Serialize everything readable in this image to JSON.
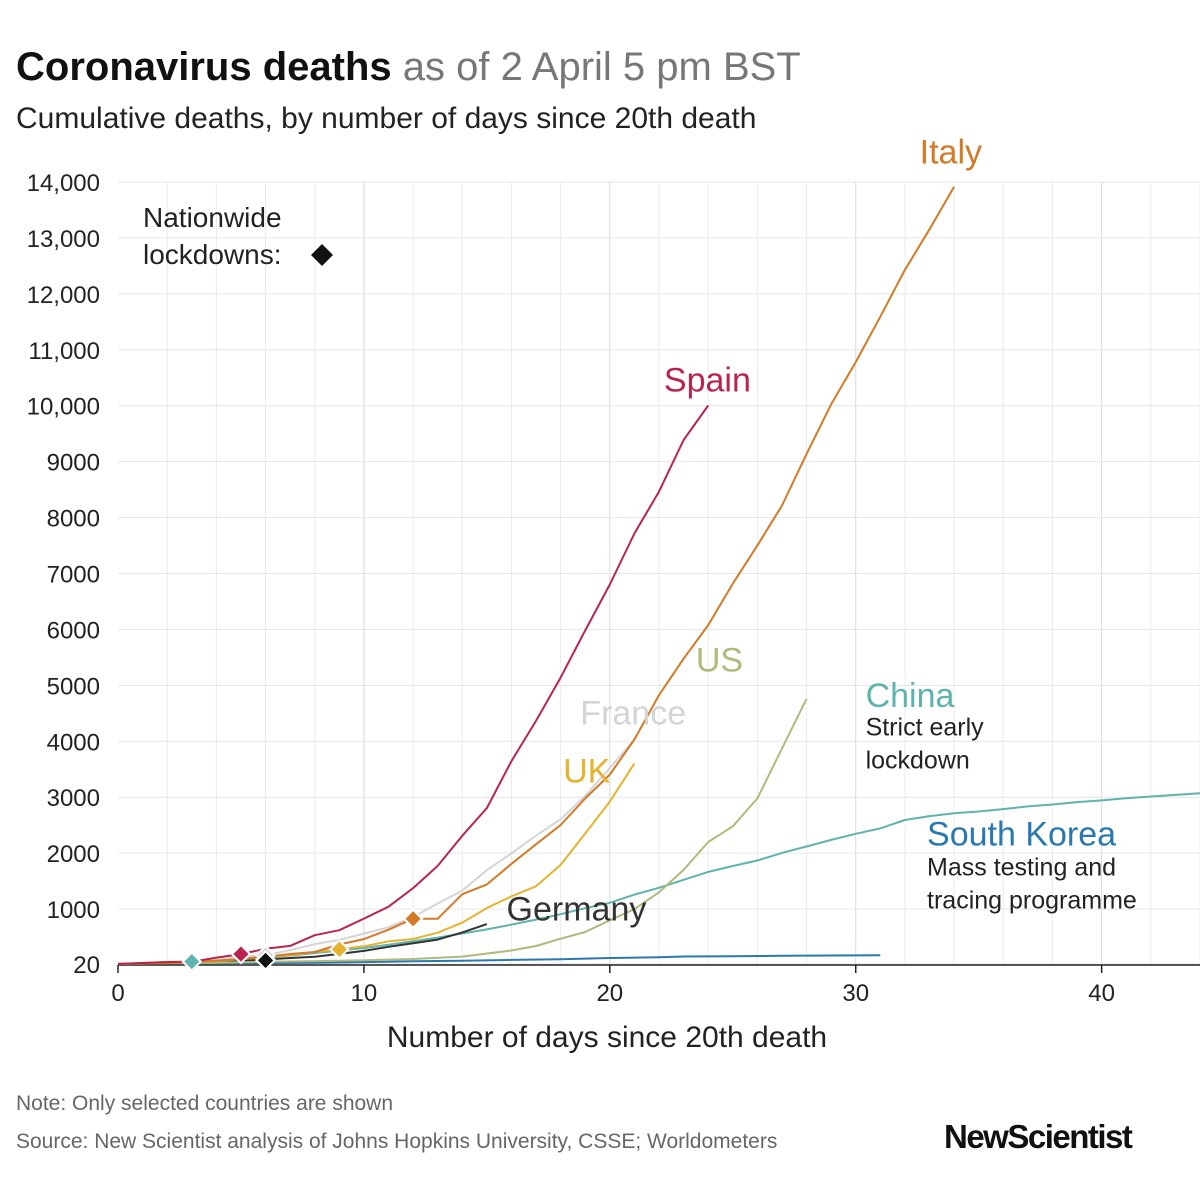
{
  "header": {
    "title_bold": "Coronavirus deaths",
    "title_light": "as of 2 April 5 pm BST",
    "subtitle": "Cumulative deaths, by number of days since 20th death"
  },
  "footer": {
    "note": "Note: Only selected countries are shown",
    "source": "Source: New Scientist analysis of Johns Hopkins University, CSSE; Worldometers",
    "brand": "NewScientist"
  },
  "chart_data": {
    "type": "line",
    "xlabel": "Number of days since 20th death",
    "ylabel": "",
    "xlim": [
      0,
      44
    ],
    "ylim": [
      0,
      14000
    ],
    "grid": true,
    "x_ticks": [
      0,
      10,
      20,
      30,
      40
    ],
    "y_ticks": [
      {
        "value": 20,
        "label": "20"
      },
      {
        "value": 1000,
        "label": "1000"
      },
      {
        "value": 2000,
        "label": "2000"
      },
      {
        "value": 3000,
        "label": "3000"
      },
      {
        "value": 4000,
        "label": "4000"
      },
      {
        "value": 5000,
        "label": "5000"
      },
      {
        "value": 6000,
        "label": "6000"
      },
      {
        "value": 7000,
        "label": "7000"
      },
      {
        "value": 8000,
        "label": "8000"
      },
      {
        "value": 9000,
        "label": "9000"
      },
      {
        "value": 10000,
        "label": "10,000"
      },
      {
        "value": 11000,
        "label": "11,000"
      },
      {
        "value": 12000,
        "label": "12,000"
      },
      {
        "value": 13000,
        "label": "13,000"
      },
      {
        "value": 14000,
        "label": "14,000"
      }
    ],
    "lockdown_legend": {
      "line1": "Nationwide",
      "line2": "lockdowns:",
      "color": "#111111"
    },
    "series": [
      {
        "name": "South Korea",
        "color": "#2a78b0",
        "values": [
          [
            0,
            21
          ],
          [
            2,
            28
          ],
          [
            4,
            32
          ],
          [
            6,
            35
          ],
          [
            8,
            42
          ],
          [
            10,
            52
          ],
          [
            12,
            66
          ],
          [
            14,
            75
          ],
          [
            16,
            91
          ],
          [
            18,
            104
          ],
          [
            20,
            126
          ],
          [
            22,
            139
          ],
          [
            23,
            152
          ],
          [
            25,
            158
          ],
          [
            27,
            165
          ],
          [
            29,
            169
          ],
          [
            31,
            174
          ]
        ],
        "lockdown": null,
        "label": {
          "text": "South Korea",
          "x": 32.9,
          "y": 2140
        },
        "note": [
          "Mass testing and",
          "tracing programme"
        ],
        "note_pos": {
          "x": 32.9,
          "y": 1600
        }
      },
      {
        "name": "China",
        "color": "#5fb3ae",
        "values": [
          [
            0,
            21
          ],
          [
            1,
            25
          ],
          [
            2,
            41
          ],
          [
            3,
            56
          ],
          [
            4,
            80
          ],
          [
            5,
            106
          ],
          [
            6,
            132
          ],
          [
            7,
            170
          ],
          [
            8,
            213
          ],
          [
            9,
            259
          ],
          [
            10,
            304
          ],
          [
            11,
            361
          ],
          [
            12,
            425
          ],
          [
            13,
            490
          ],
          [
            14,
            563
          ],
          [
            15,
            637
          ],
          [
            16,
            722
          ],
          [
            17,
            811
          ],
          [
            18,
            908
          ],
          [
            19,
            1016
          ],
          [
            20,
            1113
          ],
          [
            21,
            1259
          ],
          [
            22,
            1380
          ],
          [
            23,
            1523
          ],
          [
            24,
            1665
          ],
          [
            25,
            1770
          ],
          [
            26,
            1868
          ],
          [
            27,
            2004
          ],
          [
            28,
            2118
          ],
          [
            29,
            2236
          ],
          [
            30,
            2345
          ],
          [
            31,
            2442
          ],
          [
            32,
            2592
          ],
          [
            33,
            2663
          ],
          [
            34,
            2715
          ],
          [
            35,
            2744
          ],
          [
            36,
            2788
          ],
          [
            37,
            2835
          ],
          [
            38,
            2870
          ],
          [
            39,
            2912
          ],
          [
            40,
            2943
          ],
          [
            41,
            2981
          ],
          [
            42,
            3012
          ],
          [
            43,
            3042
          ],
          [
            44,
            3070
          ]
        ],
        "lockdown": null,
        "label": {
          "text": "China",
          "x": 30.4,
          "y": 4610
        },
        "note": [
          "Strict early",
          "lockdown"
        ],
        "note_pos": {
          "x": 30.4,
          "y": 4100
        }
      },
      {
        "name": "Germany",
        "color": "#333333",
        "values": [
          [
            0,
            20
          ],
          [
            1,
            25
          ],
          [
            2,
            31
          ],
          [
            3,
            47
          ],
          [
            4,
            55
          ],
          [
            5,
            72
          ],
          [
            6,
            99
          ],
          [
            7,
            126
          ],
          [
            8,
            149
          ],
          [
            9,
            198
          ],
          [
            10,
            253
          ],
          [
            11,
            325
          ],
          [
            12,
            389
          ],
          [
            13,
            455
          ],
          [
            14,
            583
          ],
          [
            15,
            732
          ]
        ],
        "lockdown": 6,
        "label": {
          "text": "Germany",
          "x": 15.8,
          "y": 800
        }
      },
      {
        "name": "US",
        "color": "#b1b97b",
        "values": [
          [
            0,
            22
          ],
          [
            2,
            31
          ],
          [
            4,
            40
          ],
          [
            6,
            57
          ],
          [
            8,
            69
          ],
          [
            10,
            85
          ],
          [
            12,
            108
          ],
          [
            14,
            150
          ],
          [
            16,
            260
          ],
          [
            17,
            340
          ],
          [
            18,
            471
          ],
          [
            19,
            590
          ],
          [
            20,
            800
          ],
          [
            21,
            1000
          ],
          [
            22,
            1300
          ],
          [
            23,
            1700
          ],
          [
            24,
            2200
          ],
          [
            25,
            2480
          ],
          [
            26,
            2978
          ],
          [
            27,
            3873
          ],
          [
            28,
            4757
          ]
        ],
        "lockdown": null,
        "label": {
          "text": "US",
          "x": 23.5,
          "y": 5250
        }
      },
      {
        "name": "France",
        "color": "#d4d4d4",
        "values": [
          [
            0,
            19
          ],
          [
            1,
            33
          ],
          [
            2,
            48
          ],
          [
            3,
            79
          ],
          [
            4,
            91
          ],
          [
            5,
            148
          ],
          [
            6,
            175
          ],
          [
            7,
            264
          ],
          [
            8,
            372
          ],
          [
            9,
            450
          ],
          [
            10,
            562
          ],
          [
            11,
            674
          ],
          [
            12,
            860
          ],
          [
            13,
            1100
          ],
          [
            14,
            1331
          ],
          [
            15,
            1696
          ],
          [
            16,
            1995
          ],
          [
            17,
            2314
          ],
          [
            18,
            2606
          ],
          [
            19,
            3024
          ],
          [
            20,
            3523
          ],
          [
            21,
            4032
          ]
        ],
        "lockdown": 6,
        "label": {
          "text": "France",
          "x": 18.8,
          "y": 4300
        }
      },
      {
        "name": "UK",
        "color": "#e6b32f",
        "values": [
          [
            0,
            21
          ],
          [
            1,
            35
          ],
          [
            2,
            55
          ],
          [
            3,
            60
          ],
          [
            4,
            72
          ],
          [
            5,
            104
          ],
          [
            6,
            144
          ],
          [
            7,
            177
          ],
          [
            8,
            233
          ],
          [
            9,
            281
          ],
          [
            10,
            335
          ],
          [
            11,
            422
          ],
          [
            12,
            465
          ],
          [
            13,
            578
          ],
          [
            14,
            759
          ],
          [
            15,
            1019
          ],
          [
            16,
            1228
          ],
          [
            17,
            1408
          ],
          [
            18,
            1789
          ],
          [
            19,
            2352
          ],
          [
            20,
            2921
          ],
          [
            21,
            3605
          ]
        ],
        "lockdown": 9,
        "label": {
          "text": "UK",
          "x": 18.1,
          "y": 3260
        }
      },
      {
        "name": "Italy",
        "color": "#d37a26",
        "values": [
          [
            0,
            21
          ],
          [
            1,
            29
          ],
          [
            2,
            34
          ],
          [
            3,
            52
          ],
          [
            4,
            79
          ],
          [
            5,
            107
          ],
          [
            6,
            148
          ],
          [
            7,
            197
          ],
          [
            8,
            233
          ],
          [
            9,
            366
          ],
          [
            10,
            463
          ],
          [
            11,
            631
          ],
          [
            12,
            827
          ],
          [
            13,
            827
          ],
          [
            14,
            1266
          ],
          [
            15,
            1441
          ],
          [
            16,
            1809
          ],
          [
            17,
            2158
          ],
          [
            18,
            2503
          ],
          [
            19,
            2978
          ],
          [
            20,
            3405
          ],
          [
            21,
            4032
          ],
          [
            22,
            4825
          ],
          [
            23,
            5476
          ],
          [
            24,
            6077
          ],
          [
            25,
            6820
          ],
          [
            26,
            7503
          ],
          [
            27,
            8215
          ],
          [
            28,
            9134
          ],
          [
            29,
            10023
          ],
          [
            30,
            10779
          ],
          [
            31,
            11591
          ],
          [
            32,
            12428
          ],
          [
            33,
            13155
          ],
          [
            34,
            13915
          ]
        ],
        "lockdown": 12,
        "label": {
          "text": "Italy",
          "x": 32.6,
          "y": 14330
        }
      },
      {
        "name": "Spain",
        "color": "#b8244f",
        "values": [
          [
            0,
            17
          ],
          [
            1,
            35
          ],
          [
            2,
            54
          ],
          [
            3,
            55
          ],
          [
            4,
            133
          ],
          [
            5,
            195
          ],
          [
            6,
            289
          ],
          [
            7,
            342
          ],
          [
            8,
            533
          ],
          [
            9,
            623
          ],
          [
            10,
            830
          ],
          [
            11,
            1043
          ],
          [
            12,
            1375
          ],
          [
            13,
            1772
          ],
          [
            14,
            2311
          ],
          [
            15,
            2808
          ],
          [
            16,
            3647
          ],
          [
            17,
            4365
          ],
          [
            18,
            5138
          ],
          [
            19,
            5982
          ],
          [
            20,
            6803
          ],
          [
            21,
            7716
          ],
          [
            22,
            8464
          ],
          [
            23,
            9387
          ],
          [
            24,
            10003
          ]
        ],
        "lockdown": 5,
        "label": {
          "text": "Spain",
          "x": 22.2,
          "y": 10250
        }
      }
    ],
    "china_lockdown_marker": {
      "day": 3,
      "color": "#5fb3ae"
    }
  }
}
